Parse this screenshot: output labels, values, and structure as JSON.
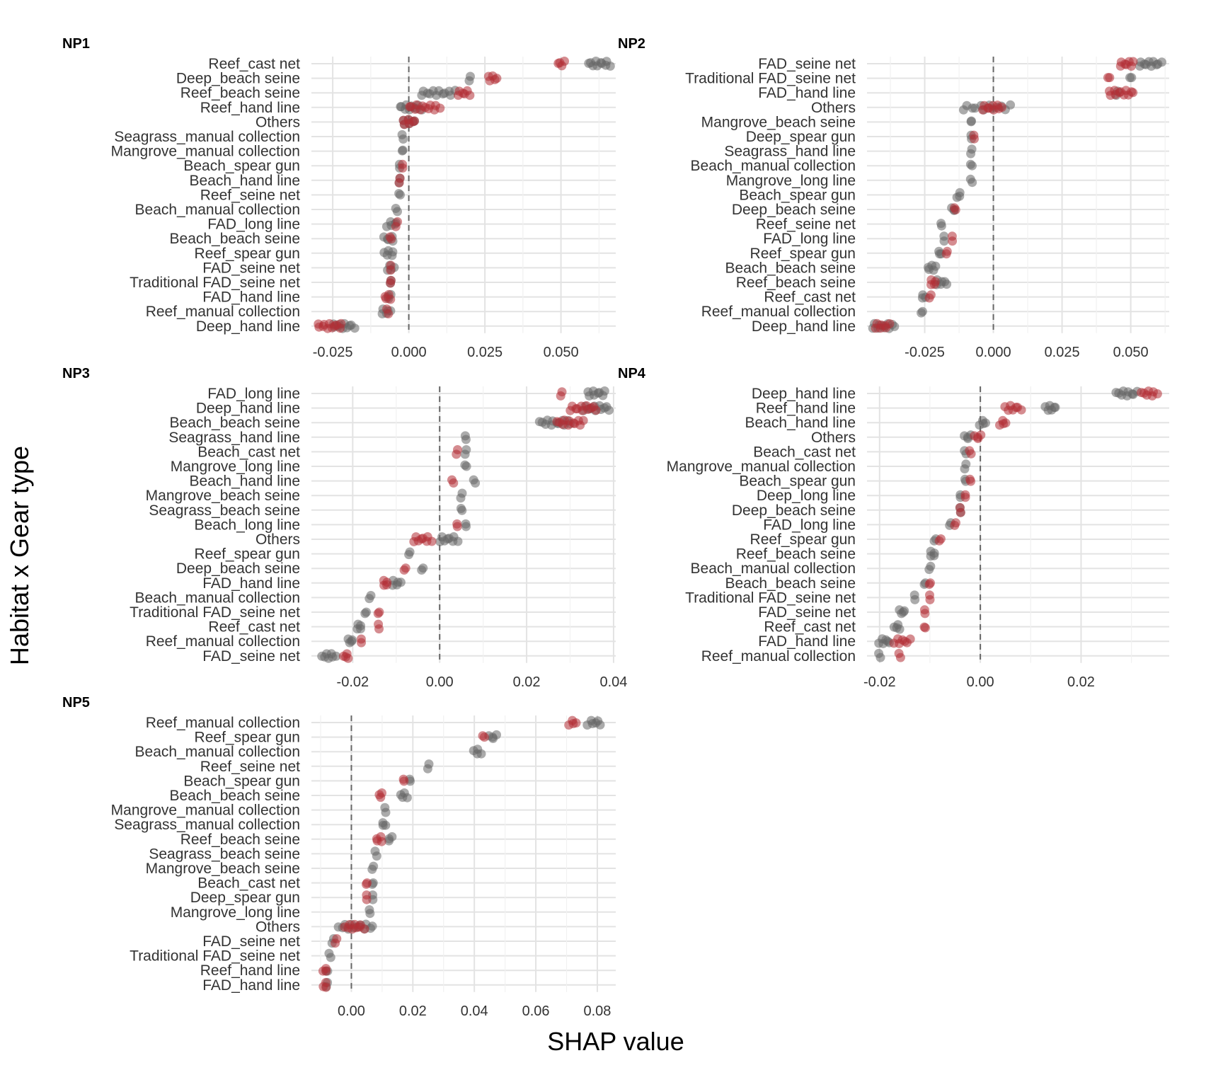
{
  "chart_data": {
    "type": "scatter",
    "xlabel": "SHAP value",
    "ylabel": "Habitat x Gear type",
    "colors": {
      "gray": "#666666",
      "red": "#b22d35"
    },
    "panels": [
      {
        "title": "NP1",
        "xlim": [
          -0.032,
          0.068
        ],
        "ticks": [
          -0.025,
          0.0,
          0.025,
          0.05
        ],
        "tick_labels": [
          "-0.025",
          "0.000",
          "0.025",
          "0.050"
        ],
        "categories": [
          "Reef_cast net",
          "Deep_beach seine",
          "Reef_beach seine",
          "Reef_hand line",
          "Others",
          "Seagrass_manual collection",
          "Mangrove_manual collection",
          "Beach_spear gun",
          "Beach_hand line",
          "Reef_seine net",
          "Beach_manual collection",
          "FAD_long line",
          "Beach_beach seine",
          "Reef_spear gun",
          "FAD_seine net",
          "Traditional FAD_seine net",
          "FAD_hand line",
          "Reef_manual collection",
          "Deep_hand line"
        ],
        "gray": [
          [
            0.059,
            0.066
          ],
          [
            0.02,
            0.02
          ],
          [
            0.004,
            0.015
          ],
          [
            -0.003,
            0.004
          ],
          [
            -0.002,
            0.002
          ],
          [
            -0.002,
            -0.002
          ],
          [
            -0.002,
            -0.002
          ],
          [
            -0.003,
            -0.003
          ],
          [
            -0.003,
            -0.003
          ],
          [
            -0.003,
            -0.003
          ],
          [
            -0.004,
            -0.004
          ],
          [
            -0.007,
            -0.004
          ],
          [
            -0.008,
            -0.005
          ],
          [
            -0.008,
            -0.005
          ],
          [
            -0.007,
            -0.005
          ],
          [
            -0.006,
            -0.006
          ],
          [
            -0.007,
            -0.006
          ],
          [
            -0.009,
            -0.006
          ],
          [
            -0.025,
            -0.018
          ]
        ],
        "red": [
          [
            0.049,
            0.051
          ],
          [
            0.026,
            0.029
          ],
          [
            0.016,
            0.02
          ],
          [
            0.0,
            0.01
          ],
          [
            -0.002,
            0.002
          ],
          null,
          null,
          [
            -0.002,
            -0.002
          ],
          [
            -0.003,
            -0.003
          ],
          null,
          null,
          [
            -0.004,
            -0.004
          ],
          [
            -0.006,
            -0.006
          ],
          null,
          [
            -0.006,
            -0.006
          ],
          [
            -0.006,
            -0.006
          ],
          [
            -0.008,
            -0.006
          ],
          [
            -0.007,
            -0.007
          ],
          [
            -0.03,
            -0.022
          ]
        ]
      },
      {
        "title": "NP2",
        "xlim": [
          -0.046,
          0.064
        ],
        "ticks": [
          -0.025,
          0.0,
          0.025,
          0.05
        ],
        "tick_labels": [
          "-0.025",
          "0.000",
          "0.025",
          "0.050"
        ],
        "categories": [
          "FAD_seine net",
          "Traditional FAD_seine net",
          "FAD_hand line",
          "Others",
          "Mangrove_beach seine",
          "Deep_spear gun",
          "Seagrass_hand line",
          "Beach_manual collection",
          "Mangrove_long line",
          "Beach_spear gun",
          "Deep_beach seine",
          "Reef_seine net",
          "FAD_long line",
          "Reef_spear gun",
          "Beach_beach seine",
          "Reef_beach seine",
          "Reef_cast net",
          "Reef_manual collection",
          "Deep_hand line"
        ],
        "gray": [
          [
            0.053,
            0.061
          ],
          [
            0.05,
            0.05
          ],
          [
            0.045,
            0.045
          ],
          [
            -0.011,
            0.006
          ],
          [
            -0.008,
            -0.008
          ],
          [
            -0.008,
            -0.008
          ],
          [
            -0.008,
            -0.008
          ],
          [
            -0.008,
            -0.008
          ],
          [
            -0.008,
            -0.008
          ],
          [
            -0.013,
            -0.012
          ],
          [
            -0.015,
            -0.014
          ],
          [
            -0.019,
            -0.019
          ],
          [
            -0.018,
            -0.018
          ],
          [
            -0.02,
            -0.019
          ],
          [
            -0.024,
            -0.021
          ],
          [
            -0.021,
            -0.017
          ],
          [
            -0.026,
            -0.025
          ],
          [
            -0.026,
            -0.026
          ],
          [
            -0.044,
            -0.036
          ]
        ],
        "red": [
          [
            0.046,
            0.051
          ],
          [
            0.042,
            0.042
          ],
          [
            0.042,
            0.051
          ],
          [
            -0.004,
            0.003
          ],
          null,
          [
            -0.007,
            -0.007
          ],
          null,
          null,
          null,
          null,
          [
            -0.014,
            -0.014
          ],
          null,
          [
            -0.015,
            -0.015
          ],
          [
            -0.017,
            -0.017
          ],
          null,
          [
            -0.023,
            -0.021
          ],
          [
            -0.023,
            -0.023
          ],
          null,
          [
            -0.043,
            -0.038
          ]
        ]
      },
      {
        "title": "NP3",
        "xlim": [
          -0.0295,
          0.0405
        ],
        "ticks": [
          -0.02,
          0.0,
          0.02,
          0.04
        ],
        "tick_labels": [
          "-0.02",
          "0.00",
          "0.02",
          "0.04"
        ],
        "categories": [
          "FAD_long line",
          "Deep_hand line",
          "Beach_beach seine",
          "Seagrass_hand line",
          "Beach_cast net",
          "Mangrove_long line",
          "Beach_hand line",
          "Mangrove_beach seine",
          "Seagrass_beach seine",
          "Beach_long line",
          "Others",
          "Reef_spear gun",
          "Deep_beach seine",
          "FAD_hand line",
          "Beach_manual collection",
          "Traditional FAD_seine net",
          "Reef_cast net",
          "Reef_manual collection",
          "FAD_seine net"
        ],
        "gray": [
          [
            0.034,
            0.038
          ],
          [
            0.033,
            0.039
          ],
          [
            0.023,
            0.03
          ],
          [
            0.006,
            0.006
          ],
          [
            0.006,
            0.006
          ],
          [
            0.006,
            0.006
          ],
          [
            0.008,
            0.008
          ],
          [
            0.005,
            0.005
          ],
          [
            0.005,
            0.005
          ],
          [
            0.006,
            0.006
          ],
          [
            0.0,
            0.004
          ],
          [
            -0.007,
            -0.007
          ],
          [
            -0.004,
            -0.004
          ],
          [
            -0.011,
            -0.009
          ],
          [
            -0.016,
            -0.016
          ],
          [
            -0.017,
            -0.017
          ],
          [
            -0.019,
            -0.018
          ],
          [
            -0.021,
            -0.02
          ],
          [
            -0.027,
            -0.024
          ]
        ],
        "red": [
          [
            0.028,
            0.028
          ],
          [
            0.03,
            0.036
          ],
          [
            0.027,
            0.033
          ],
          null,
          [
            0.004,
            0.004
          ],
          null,
          [
            0.003,
            0.003
          ],
          null,
          null,
          [
            0.004,
            0.004
          ],
          [
            -0.006,
            -0.002
          ],
          null,
          [
            -0.008,
            -0.008
          ],
          [
            -0.013,
            -0.012
          ],
          null,
          [
            -0.014,
            -0.014
          ],
          [
            -0.014,
            -0.014
          ],
          [
            -0.018,
            -0.018
          ],
          [
            -0.022,
            -0.021
          ]
        ]
      },
      {
        "title": "NP4",
        "xlim": [
          -0.0225,
          0.0375
        ],
        "ticks": [
          -0.02,
          0.0,
          0.02
        ],
        "tick_labels": [
          "-0.02",
          "0.00",
          "0.02"
        ],
        "categories": [
          "Deep_hand line",
          "Reef_hand line",
          "Beach_hand line",
          "Others",
          "Beach_cast net",
          "Mangrove_manual collection",
          "Beach_spear gun",
          "Deep_long line",
          "Deep_beach seine",
          "FAD_long line",
          "Reef_spear gun",
          "Reef_beach seine",
          "Beach_manual collection",
          "Beach_beach seine",
          "Traditional FAD_seine net",
          "FAD_seine net",
          "Reef_cast net",
          "FAD_hand line",
          "Reef_manual collection"
        ],
        "gray": [
          [
            0.027,
            0.031
          ],
          [
            0.013,
            0.015
          ],
          [
            0.0,
            0.001
          ],
          [
            -0.003,
            -0.002
          ],
          [
            -0.003,
            -0.003
          ],
          [
            -0.003,
            -0.003
          ],
          [
            -0.003,
            -0.003
          ],
          [
            -0.004,
            -0.004
          ],
          [
            -0.004,
            -0.004
          ],
          [
            -0.006,
            -0.006
          ],
          [
            -0.009,
            -0.009
          ],
          [
            -0.01,
            -0.009
          ],
          [
            -0.01,
            -0.01
          ],
          [
            -0.011,
            -0.011
          ],
          [
            -0.013,
            -0.013
          ],
          [
            -0.016,
            -0.015
          ],
          [
            -0.017,
            -0.016
          ],
          [
            -0.02,
            -0.018
          ],
          [
            -0.02,
            -0.02
          ]
        ],
        "red": [
          [
            0.032,
            0.035
          ],
          [
            0.005,
            0.008
          ],
          [
            0.004,
            0.005
          ],
          [
            -0.001,
            0.0
          ],
          [
            -0.002,
            -0.002
          ],
          null,
          [
            -0.002,
            -0.002
          ],
          [
            -0.003,
            -0.003
          ],
          [
            -0.004,
            -0.004
          ],
          [
            -0.005,
            -0.005
          ],
          [
            -0.008,
            -0.008
          ],
          null,
          null,
          [
            -0.01,
            -0.01
          ],
          [
            -0.01,
            -0.01
          ],
          [
            -0.011,
            -0.011
          ],
          [
            -0.011,
            -0.011
          ],
          [
            -0.017,
            -0.014
          ],
          [
            -0.016,
            -0.016
          ]
        ]
      },
      {
        "title": "NP5",
        "xlim": [
          -0.013,
          0.086
        ],
        "ticks": [
          0.0,
          0.02,
          0.04,
          0.06,
          0.08
        ],
        "tick_labels": [
          "0.00",
          "0.02",
          "0.04",
          "0.06",
          "0.08"
        ],
        "categories": [
          "Reef_manual collection",
          "Reef_spear gun",
          "Beach_manual collection",
          "Reef_seine net",
          "Beach_spear gun",
          "Beach_beach seine",
          "Mangrove_manual collection",
          "Seagrass_manual collection",
          "Reef_beach seine",
          "Seagrass_beach seine",
          "Mangrove_beach seine",
          "Beach_cast net",
          "Deep_spear gun",
          "Mangrove_long line",
          "Others",
          "FAD_seine net",
          "Traditional FAD_seine net",
          "Reef_hand line",
          "FAD_hand line"
        ],
        "gray": [
          [
            0.077,
            0.081
          ],
          [
            0.045,
            0.047
          ],
          [
            0.04,
            0.042
          ],
          [
            0.025,
            0.025
          ],
          [
            0.019,
            0.019
          ],
          [
            0.016,
            0.018
          ],
          [
            0.011,
            0.011
          ],
          [
            0.01,
            0.011
          ],
          [
            0.012,
            0.013
          ],
          [
            0.008,
            0.008
          ],
          [
            0.007,
            0.007
          ],
          [
            0.007,
            0.007
          ],
          [
            0.007,
            0.007
          ],
          [
            0.006,
            0.006
          ],
          [
            -0.004,
            0.007
          ],
          [
            -0.006,
            -0.006
          ],
          [
            -0.007,
            -0.007
          ],
          [
            -0.008,
            -0.008
          ],
          [
            -0.008,
            -0.008
          ]
        ],
        "red": [
          [
            0.071,
            0.073
          ],
          [
            0.043,
            0.043
          ],
          null,
          null,
          [
            0.017,
            0.017
          ],
          [
            0.009,
            0.01
          ],
          null,
          null,
          [
            0.008,
            0.01
          ],
          null,
          null,
          [
            0.005,
            0.005
          ],
          [
            0.005,
            0.005
          ],
          null,
          [
            -0.002,
            0.004
          ],
          [
            -0.005,
            -0.005
          ],
          null,
          [
            -0.009,
            -0.008
          ],
          [
            -0.009,
            -0.008
          ]
        ]
      }
    ]
  }
}
